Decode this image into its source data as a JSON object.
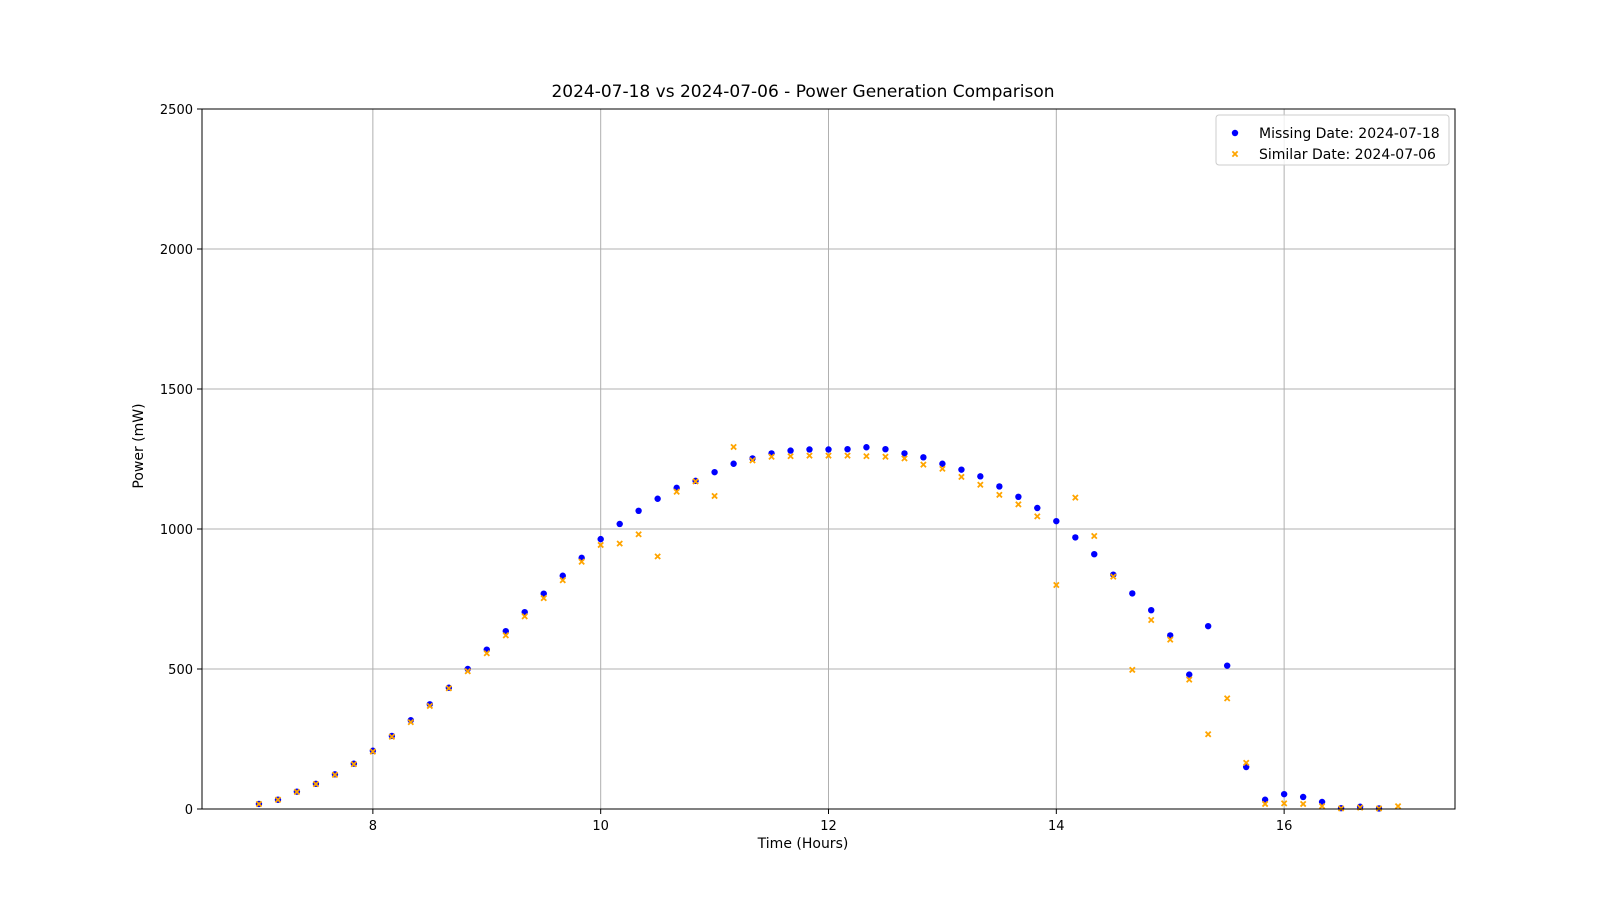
{
  "chart_data": {
    "type": "scatter",
    "title": "2024-07-18 vs 2024-07-06 - Power Generation Comparison",
    "xlabel": "Time (Hours)",
    "ylabel": "Power (mW)",
    "xlim": [
      6.5,
      17.5
    ],
    "ylim": [
      0,
      2500
    ],
    "xticks": [
      8,
      10,
      12,
      14,
      16
    ],
    "yticks": [
      0,
      500,
      1000,
      1500,
      2000,
      2500
    ],
    "grid": true,
    "legend_position": "top-right",
    "series": [
      {
        "name": "Missing Date: 2024-07-18",
        "marker": "circle",
        "color": "#0000ff",
        "x": [
          7.0,
          7.167,
          7.333,
          7.5,
          7.667,
          7.833,
          8.0,
          8.167,
          8.333,
          8.5,
          8.667,
          8.833,
          9.0,
          9.167,
          9.333,
          9.5,
          9.667,
          9.833,
          10.0,
          10.167,
          10.333,
          10.5,
          10.667,
          10.833,
          11.0,
          11.167,
          11.333,
          11.5,
          11.667,
          11.833,
          12.0,
          12.167,
          12.333,
          12.5,
          12.667,
          12.833,
          13.0,
          13.167,
          13.333,
          13.5,
          13.667,
          13.833,
          14.0,
          14.167,
          14.333,
          14.5,
          14.667,
          14.833,
          15.0,
          15.167,
          15.333,
          15.5,
          15.667,
          15.833,
          16.0,
          16.167,
          16.333,
          16.5,
          16.667,
          16.833
        ],
        "y": [
          18,
          33,
          62,
          90,
          124,
          162,
          208,
          261,
          317,
          374,
          433,
          500,
          569,
          635,
          703,
          769,
          833,
          897,
          964,
          1018,
          1065,
          1108,
          1147,
          1172,
          1203,
          1233,
          1252,
          1270,
          1280,
          1284,
          1284,
          1285,
          1292,
          1285,
          1270,
          1256,
          1233,
          1212,
          1188,
          1152,
          1115,
          1075,
          1028,
          970,
          910,
          837,
          770,
          710,
          620,
          480,
          653,
          512,
          150,
          33,
          53,
          43,
          25,
          3,
          8,
          2
        ]
      },
      {
        "name": "Similar Date: 2024-07-06",
        "marker": "x",
        "color": "#ffa500",
        "x": [
          7.0,
          7.167,
          7.333,
          7.5,
          7.667,
          7.833,
          8.0,
          8.167,
          8.333,
          8.5,
          8.667,
          8.833,
          9.0,
          9.167,
          9.333,
          9.5,
          9.667,
          9.833,
          10.0,
          10.167,
          10.333,
          10.5,
          10.667,
          10.833,
          11.0,
          11.167,
          11.333,
          11.5,
          11.667,
          11.833,
          12.0,
          12.167,
          12.333,
          12.5,
          12.667,
          12.833,
          13.0,
          13.167,
          13.333,
          13.5,
          13.667,
          13.833,
          14.0,
          14.167,
          14.333,
          14.5,
          14.667,
          14.833,
          15.0,
          15.167,
          15.333,
          15.5,
          15.667,
          15.833,
          16.0,
          16.167,
          16.333,
          16.5,
          16.667,
          16.833,
          17.0
        ],
        "y": [
          18,
          33,
          61,
          89,
          122,
          160,
          205,
          258,
          310,
          368,
          431,
          492,
          556,
          620,
          688,
          753,
          817,
          883,
          943,
          948,
          981,
          902,
          1133,
          1170,
          1118,
          1293,
          1245,
          1258,
          1260,
          1262,
          1262,
          1262,
          1260,
          1258,
          1252,
          1230,
          1215,
          1186,
          1158,
          1122,
          1088,
          1045,
          800,
          1112,
          975,
          830,
          497,
          675,
          605,
          462,
          267,
          395,
          165,
          18,
          20,
          18,
          10,
          2,
          5,
          2,
          10
        ]
      }
    ]
  }
}
